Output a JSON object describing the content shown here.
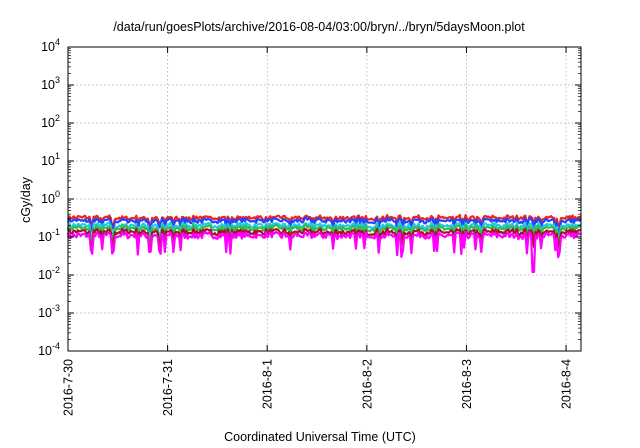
{
  "chart_data": {
    "type": "line",
    "title": "/data/run/goesPlots/archive/2016-08-04/03:00/bryn/../bryn/5daysMoon.plot",
    "xlabel": "Coordinated Universal Time (UTC)",
    "ylabel": "cGy/day",
    "y_scale": "log",
    "ylim_exponents": [
      -4,
      4
    ],
    "y_tick_base": "10",
    "y_tick_exponents": [
      "-4",
      "-3",
      "-2",
      "-1",
      "0",
      "1",
      "2",
      "3",
      "4"
    ],
    "xlim_days": [
      0,
      5.15
    ],
    "x_ticks": [
      {
        "label": "2016-7-30",
        "day": 0
      },
      {
        "label": "2016-7-31",
        "day": 1
      },
      {
        "label": "2016-8-1",
        "day": 2
      },
      {
        "label": "2016-8-2",
        "day": 3
      },
      {
        "label": "2016-8-3",
        "day": 4
      },
      {
        "label": "2016-8-4",
        "day": 5
      }
    ],
    "grid": true,
    "series": [
      {
        "color": "#ee2222",
        "baseline": 0.32
      },
      {
        "color": "#2244ff",
        "baseline": 0.27
      },
      {
        "color": "#22ccdd",
        "baseline": 0.2
      },
      {
        "color": "#33bb55",
        "baseline": 0.17
      },
      {
        "color": "#aa1122",
        "baseline": 0.135
      },
      {
        "color": "#ff00ff",
        "baseline": 0.11,
        "dips": [
          {
            "day": 3.35,
            "value": 0.03
          },
          {
            "day": 4.67,
            "value": 0.012
          }
        ]
      }
    ]
  }
}
